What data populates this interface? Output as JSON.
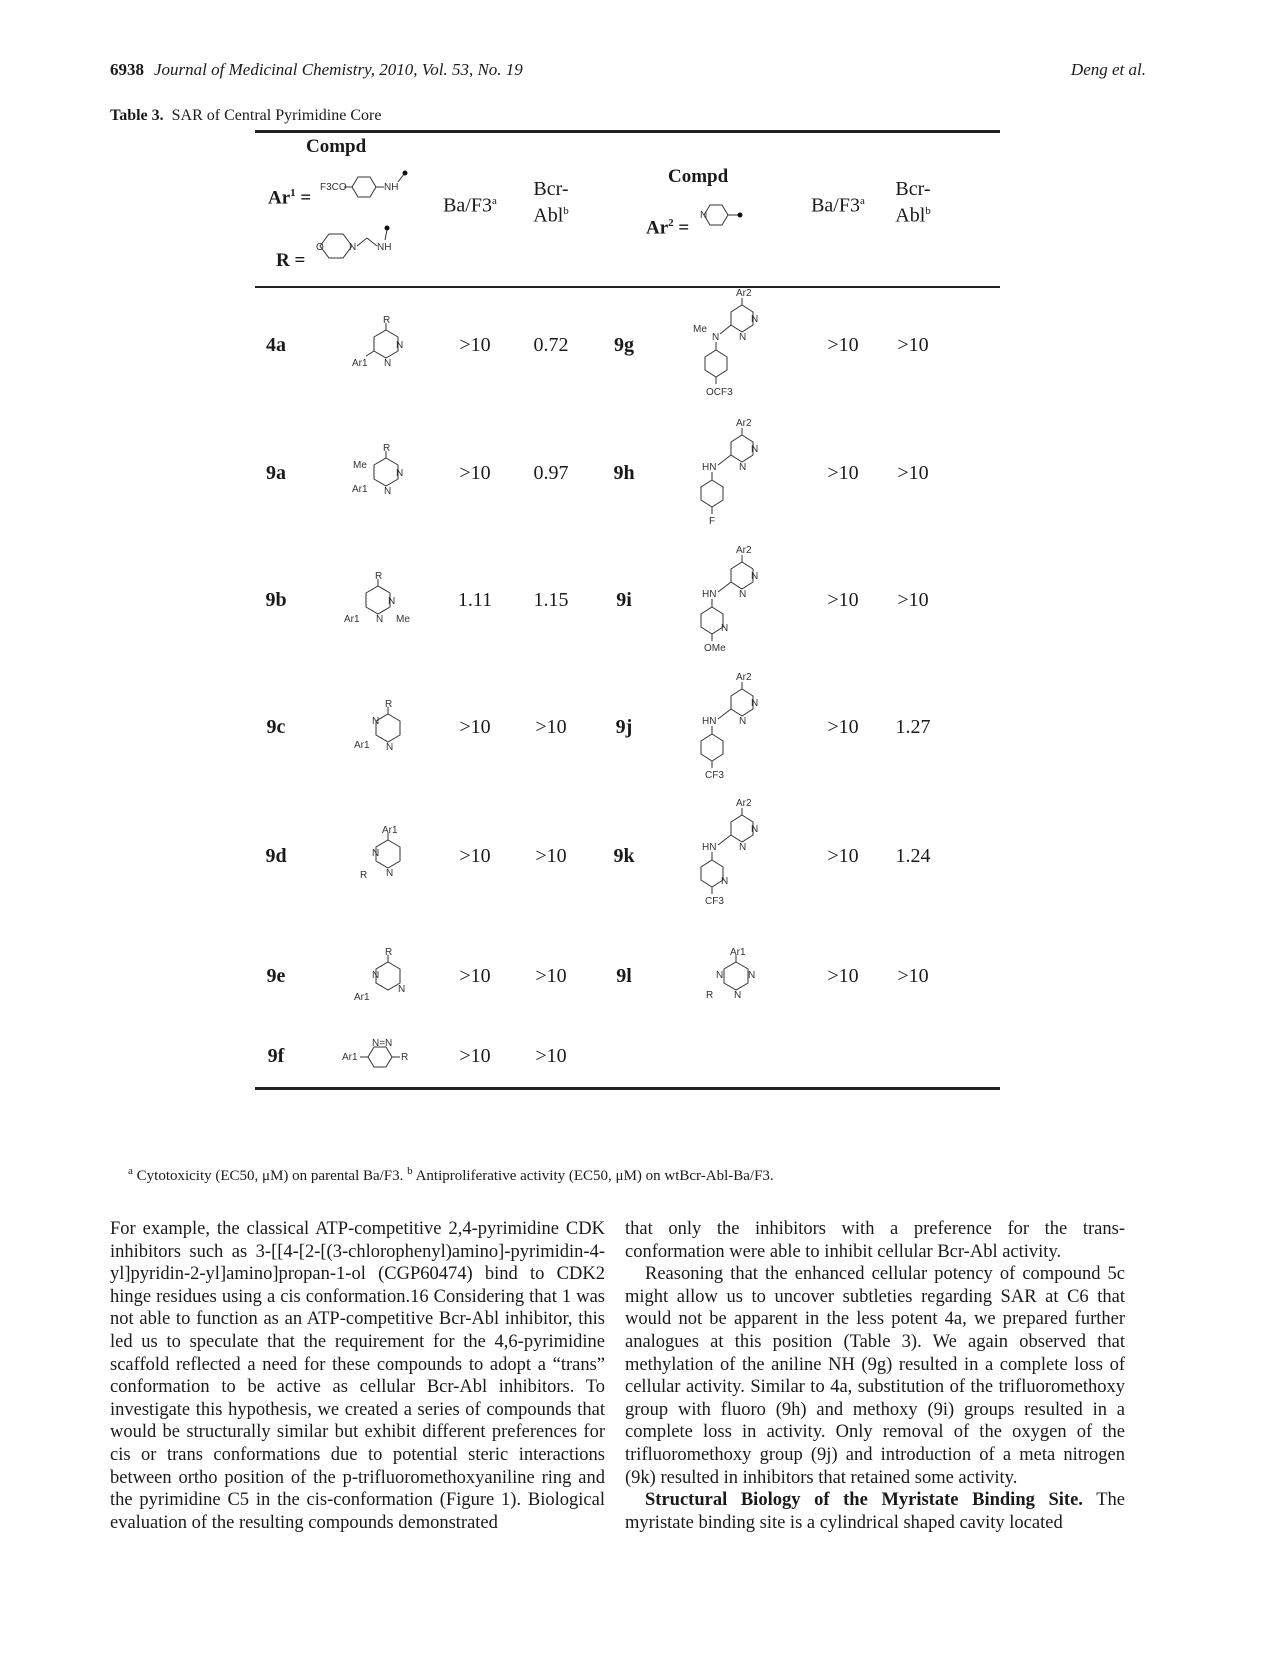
{
  "header": {
    "page_number": "6938",
    "journal": "Journal of Medicinal Chemistry, 2010, Vol. 53, No. 19",
    "authors": "Deng et al."
  },
  "table": {
    "caption_label": "Table 3.",
    "caption_text": "SAR of Central Pyrimidine Core",
    "left_header": {
      "compd": "Compd",
      "ar1_label": "Ar",
      "ar1_sup": "1",
      "ar1_eq": " =",
      "r_label": "R =",
      "ar1_group_text": "F3CO",
      "ar1_nh": "NH",
      "r_nh": "NH",
      "r_o": "O",
      "r_n": "N"
    },
    "right_header": {
      "compd": "Compd",
      "ar2_label": "Ar",
      "ar2_sup": "2",
      "ar2_eq": " =",
      "ar2_n": "N"
    },
    "col_baf3": "Ba/F3",
    "col_baf3_sup": "a",
    "col_bcr_line1": "Bcr-",
    "col_bcr_line2": "Abl",
    "col_bcr_sup": "b",
    "left_rows": [
      {
        "id": "4a",
        "baf3": ">10",
        "bcr": "0.72"
      },
      {
        "id": "9a",
        "baf3": ">10",
        "bcr": "0.97"
      },
      {
        "id": "9b",
        "baf3": "1.11",
        "bcr": "1.15"
      },
      {
        "id": "9c",
        "baf3": ">10",
        "bcr": ">10"
      },
      {
        "id": "9d",
        "baf3": ">10",
        "bcr": ">10"
      },
      {
        "id": "9e",
        "baf3": ">10",
        "bcr": ">10"
      },
      {
        "id": "9f",
        "baf3": ">10",
        "bcr": ">10"
      }
    ],
    "right_rows": [
      {
        "id": "9g",
        "baf3": ">10",
        "bcr": ">10"
      },
      {
        "id": "9h",
        "baf3": ">10",
        "bcr": ">10"
      },
      {
        "id": "9i",
        "baf3": ">10",
        "bcr": ">10"
      },
      {
        "id": "9j",
        "baf3": ">10",
        "bcr": "1.27"
      },
      {
        "id": "9k",
        "baf3": ">10",
        "bcr": "1.24"
      },
      {
        "id": "9l",
        "baf3": ">10",
        "bcr": ">10"
      }
    ],
    "structure_labels": {
      "R": "R",
      "N": "N",
      "Ar1": "Ar1",
      "Ar2": "Ar2",
      "Me": "Me",
      "HN": "HN",
      "F": "F",
      "OMe": "OMe",
      "CF3": "CF3",
      "OCF3": "OCF3",
      "NN": "N=N"
    },
    "footnote_a_mark": "a",
    "footnote_a": " Cytotoxicity (EC50, μM) on parental Ba/F3. ",
    "footnote_b_mark": "b",
    "footnote_b": " Antiproliferative activity (EC50, μM) on wtBcr-Abl-Ba/F3."
  },
  "body": {
    "left_col": "For example, the classical ATP-competitive 2,4-pyrimidine CDK inhibitors such as 3-[[4-[2-[(3-chlorophenyl)amino]-pyrimidin-4-yl]pyridin-2-yl]amino]propan-1-ol (CGP60474) bind to CDK2 hinge residues using a cis conformation.16 Considering that 1 was not able to function as an ATP-competitive Bcr-Abl inhibitor, this led us to speculate that the requirement for the 4,6-pyrimidine scaffold reflected a need for these compounds to adopt a “trans” conformation to be active as cellular Bcr-Abl inhibitors. To investigate this hypothesis, we created a series of compounds that would be structurally similar but exhibit different preferences for cis or trans conformations due to potential steric interactions between ortho position of the p-trifluoromethoxyaniline ring and the pyrimidine C5 in the cis-conformation (Figure 1). Biological evaluation of the resulting compounds demonstrated",
    "right_col_p1": "that only the inhibitors with a preference for the trans-conformation were able to inhibit cellular Bcr-Abl activity.",
    "right_col_p2": "Reasoning that the enhanced cellular potency of compound 5c might allow us to uncover subtleties regarding SAR at C6 that would not be apparent in the less potent 4a, we prepared further analogues at this position (Table 3). We again observed that methylation of the aniline NH (9g) resulted in a complete loss of cellular activity. Similar to 4a, substitution of the trifluoromethoxy group with fluoro (9h) and methoxy (9i) groups resulted in a complete loss in activity. Only removal of the oxygen of the trifluoromethoxy group (9j) and introduction of a meta nitrogen (9k) resulted in inhibitors that retained some activity.",
    "right_col_p3_heading": "Structural Biology of the Myristate Binding Site.",
    "right_col_p3": " The myristate binding site is a cylindrical shaped cavity located"
  }
}
